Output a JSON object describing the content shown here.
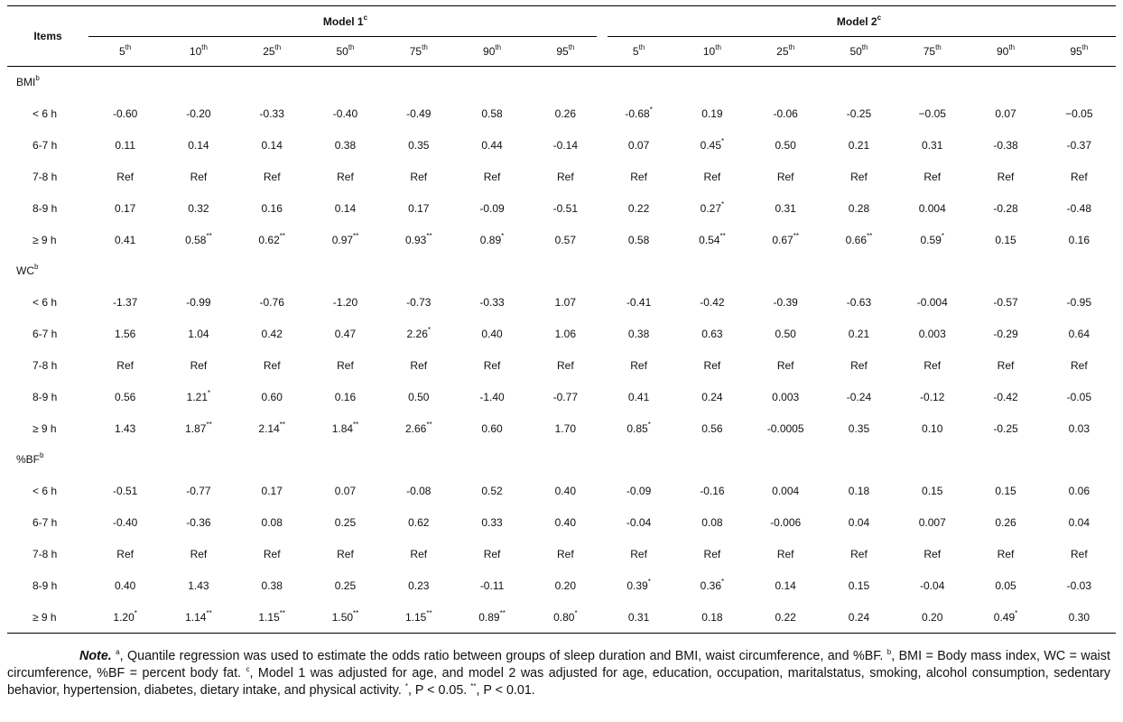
{
  "header": {
    "items": "Items",
    "model1": "Model 1",
    "model1_sup": "c",
    "model2": "Model 2",
    "model2_sup": "c",
    "percentiles": [
      {
        "num": "5",
        "sup": "th"
      },
      {
        "num": "10",
        "sup": "th"
      },
      {
        "num": "25",
        "sup": "th"
      },
      {
        "num": "50",
        "sup": "th"
      },
      {
        "num": "75",
        "sup": "th"
      },
      {
        "num": "90",
        "sup": "th"
      },
      {
        "num": "95",
        "sup": "th"
      }
    ]
  },
  "sections": [
    {
      "name": "BMI",
      "sup": "b",
      "rows": [
        {
          "label": "< 6 h",
          "values": [
            [
              "-0.60",
              ""
            ],
            [
              "-0.20",
              ""
            ],
            [
              "-0.33",
              ""
            ],
            [
              "-0.40",
              ""
            ],
            [
              "-0.49",
              ""
            ],
            [
              "0.58",
              ""
            ],
            [
              "0.26",
              ""
            ],
            [
              "-0.68",
              "*"
            ],
            [
              "0.19",
              ""
            ],
            [
              "-0.06",
              ""
            ],
            [
              "-0.25",
              ""
            ],
            [
              "−0.05",
              ""
            ],
            [
              "0.07",
              ""
            ],
            [
              "−0.05",
              ""
            ]
          ]
        },
        {
          "label": "6-7 h",
          "values": [
            [
              "0.11",
              ""
            ],
            [
              "0.14",
              ""
            ],
            [
              "0.14",
              ""
            ],
            [
              "0.38",
              ""
            ],
            [
              "0.35",
              ""
            ],
            [
              "0.44",
              ""
            ],
            [
              "-0.14",
              ""
            ],
            [
              "0.07",
              ""
            ],
            [
              "0.45",
              "*"
            ],
            [
              "0.50",
              ""
            ],
            [
              "0.21",
              ""
            ],
            [
              "0.31",
              ""
            ],
            [
              "-0.38",
              ""
            ],
            [
              "-0.37",
              ""
            ]
          ]
        },
        {
          "label": "7-8 h",
          "values": [
            [
              "Ref",
              ""
            ],
            [
              "Ref",
              ""
            ],
            [
              "Ref",
              ""
            ],
            [
              "Ref",
              ""
            ],
            [
              "Ref",
              ""
            ],
            [
              "Ref",
              ""
            ],
            [
              "Ref",
              ""
            ],
            [
              "Ref",
              ""
            ],
            [
              "Ref",
              ""
            ],
            [
              "Ref",
              ""
            ],
            [
              "Ref",
              ""
            ],
            [
              "Ref",
              ""
            ],
            [
              "Ref",
              ""
            ],
            [
              "Ref",
              ""
            ]
          ]
        },
        {
          "label": "8-9 h",
          "values": [
            [
              "0.17",
              ""
            ],
            [
              "0.32",
              ""
            ],
            [
              "0.16",
              ""
            ],
            [
              "0.14",
              ""
            ],
            [
              "0.17",
              ""
            ],
            [
              "-0.09",
              ""
            ],
            [
              "-0.51",
              ""
            ],
            [
              "0.22",
              ""
            ],
            [
              "0.27",
              "*"
            ],
            [
              "0.31",
              ""
            ],
            [
              "0.28",
              ""
            ],
            [
              "0.004",
              ""
            ],
            [
              "-0.28",
              ""
            ],
            [
              "-0.48",
              ""
            ]
          ]
        },
        {
          "label": "≥ 9 h",
          "values": [
            [
              "0.41",
              ""
            ],
            [
              "0.58",
              "**"
            ],
            [
              "0.62",
              "**"
            ],
            [
              "0.97",
              "**"
            ],
            [
              "0.93",
              "**"
            ],
            [
              "0.89",
              "*"
            ],
            [
              "0.57",
              ""
            ],
            [
              "0.58",
              ""
            ],
            [
              "0.54",
              "**"
            ],
            [
              "0.67",
              "**"
            ],
            [
              "0.66",
              "**"
            ],
            [
              "0.59",
              "*"
            ],
            [
              "0.15",
              ""
            ],
            [
              "0.16",
              ""
            ]
          ]
        }
      ]
    },
    {
      "name": "WC",
      "sup": "b",
      "rows": [
        {
          "label": "< 6 h",
          "values": [
            [
              "-1.37",
              ""
            ],
            [
              "-0.99",
              ""
            ],
            [
              "-0.76",
              ""
            ],
            [
              "-1.20",
              ""
            ],
            [
              "-0.73",
              ""
            ],
            [
              "-0.33",
              ""
            ],
            [
              "1.07",
              ""
            ],
            [
              "-0.41",
              ""
            ],
            [
              "-0.42",
              ""
            ],
            [
              "-0.39",
              ""
            ],
            [
              "-0.63",
              ""
            ],
            [
              "-0.004",
              ""
            ],
            [
              "-0.57",
              ""
            ],
            [
              "-0.95",
              ""
            ]
          ]
        },
        {
          "label": "6-7 h",
          "values": [
            [
              "1.56",
              ""
            ],
            [
              "1.04",
              ""
            ],
            [
              "0.42",
              ""
            ],
            [
              "0.47",
              ""
            ],
            [
              "2.26",
              "*"
            ],
            [
              "0.40",
              ""
            ],
            [
              "1.06",
              ""
            ],
            [
              "0.38",
              ""
            ],
            [
              "0.63",
              ""
            ],
            [
              "0.50",
              ""
            ],
            [
              "0.21",
              ""
            ],
            [
              "0.003",
              ""
            ],
            [
              "-0.29",
              ""
            ],
            [
              "0.64",
              ""
            ]
          ]
        },
        {
          "label": "7-8 h",
          "values": [
            [
              "Ref",
              ""
            ],
            [
              "Ref",
              ""
            ],
            [
              "Ref",
              ""
            ],
            [
              "Ref",
              ""
            ],
            [
              "Ref",
              ""
            ],
            [
              "Ref",
              ""
            ],
            [
              "Ref",
              ""
            ],
            [
              "Ref",
              ""
            ],
            [
              "Ref",
              ""
            ],
            [
              "Ref",
              ""
            ],
            [
              "Ref",
              ""
            ],
            [
              "Ref",
              ""
            ],
            [
              "Ref",
              ""
            ],
            [
              "Ref",
              ""
            ]
          ]
        },
        {
          "label": "8-9 h",
          "values": [
            [
              "0.56",
              ""
            ],
            [
              "1.21",
              "*"
            ],
            [
              "0.60",
              ""
            ],
            [
              "0.16",
              ""
            ],
            [
              "0.50",
              ""
            ],
            [
              "-1.40",
              ""
            ],
            [
              "-0.77",
              ""
            ],
            [
              "0.41",
              ""
            ],
            [
              "0.24",
              ""
            ],
            [
              "0.003",
              ""
            ],
            [
              "-0.24",
              ""
            ],
            [
              "-0.12",
              ""
            ],
            [
              "-0.42",
              ""
            ],
            [
              "-0.05",
              ""
            ]
          ]
        },
        {
          "label": "≥ 9 h",
          "values": [
            [
              "1.43",
              ""
            ],
            [
              "1.87",
              "**"
            ],
            [
              "2.14",
              "**"
            ],
            [
              "1.84",
              "**"
            ],
            [
              "2.66",
              "**"
            ],
            [
              "0.60",
              ""
            ],
            [
              "1.70",
              ""
            ],
            [
              "0.85",
              "*"
            ],
            [
              "0.56",
              ""
            ],
            [
              "-0.0005",
              ""
            ],
            [
              "0.35",
              ""
            ],
            [
              "0.10",
              ""
            ],
            [
              "-0.25",
              ""
            ],
            [
              "0.03",
              ""
            ]
          ]
        }
      ]
    },
    {
      "name": "%BF",
      "sup": "b",
      "rows": [
        {
          "label": "< 6 h",
          "values": [
            [
              "-0.51",
              ""
            ],
            [
              "-0.77",
              ""
            ],
            [
              "0.17",
              ""
            ],
            [
              "0.07",
              ""
            ],
            [
              "-0.08",
              ""
            ],
            [
              "0.52",
              ""
            ],
            [
              "0.40",
              ""
            ],
            [
              "-0.09",
              ""
            ],
            [
              "-0.16",
              ""
            ],
            [
              "0.004",
              ""
            ],
            [
              "0.18",
              ""
            ],
            [
              "0.15",
              ""
            ],
            [
              "0.15",
              ""
            ],
            [
              "0.06",
              ""
            ]
          ]
        },
        {
          "label": "6-7 h",
          "values": [
            [
              "-0.40",
              ""
            ],
            [
              "-0.36",
              ""
            ],
            [
              "0.08",
              ""
            ],
            [
              "0.25",
              ""
            ],
            [
              "0.62",
              ""
            ],
            [
              "0.33",
              ""
            ],
            [
              "0.40",
              ""
            ],
            [
              "-0.04",
              ""
            ],
            [
              "0.08",
              ""
            ],
            [
              "-0.006",
              ""
            ],
            [
              "0.04",
              ""
            ],
            [
              "0.007",
              ""
            ],
            [
              "0.26",
              ""
            ],
            [
              "0.04",
              ""
            ]
          ]
        },
        {
          "label": "7-8 h",
          "values": [
            [
              "Ref",
              ""
            ],
            [
              "Ref",
              ""
            ],
            [
              "Ref",
              ""
            ],
            [
              "Ref",
              ""
            ],
            [
              "Ref",
              ""
            ],
            [
              "Ref",
              ""
            ],
            [
              "Ref",
              ""
            ],
            [
              "Ref",
              ""
            ],
            [
              "Ref",
              ""
            ],
            [
              "Ref",
              ""
            ],
            [
              "Ref",
              ""
            ],
            [
              "Ref",
              ""
            ],
            [
              "Ref",
              ""
            ],
            [
              "Ref",
              ""
            ]
          ]
        },
        {
          "label": "8-9 h",
          "values": [
            [
              "0.40",
              ""
            ],
            [
              "1.43",
              ""
            ],
            [
              "0.38",
              ""
            ],
            [
              "0.25",
              ""
            ],
            [
              "0.23",
              ""
            ],
            [
              "-0.11",
              ""
            ],
            [
              "0.20",
              ""
            ],
            [
              "0.39",
              "*"
            ],
            [
              "0.36",
              "*"
            ],
            [
              "0.14",
              ""
            ],
            [
              "0.15",
              ""
            ],
            [
              "-0.04",
              ""
            ],
            [
              "0.05",
              ""
            ],
            [
              "-0.03",
              ""
            ]
          ]
        },
        {
          "label": "≥ 9 h",
          "values": [
            [
              "1.20",
              "*"
            ],
            [
              "1.14",
              "**"
            ],
            [
              "1.15",
              "**"
            ],
            [
              "1.50",
              "**"
            ],
            [
              "1.15",
              "**"
            ],
            [
              "0.89",
              "**"
            ],
            [
              "0.80",
              "*"
            ],
            [
              "0.31",
              ""
            ],
            [
              "0.18",
              ""
            ],
            [
              "0.22",
              ""
            ],
            [
              "0.24",
              ""
            ],
            [
              "0.20",
              ""
            ],
            [
              "0.49",
              "*"
            ],
            [
              "0.30",
              ""
            ]
          ]
        }
      ]
    }
  ],
  "note": {
    "lead": "Note.",
    "parts": [
      {
        "sup": "a",
        "text": ", Quantile regression was used to estimate the odds ratio between groups of sleep duration and BMI, waist circumference, and %BF. "
      },
      {
        "sup": "b",
        "text": ", BMI = Body mass index, WC = waist circumference, %BF = percent body fat. "
      },
      {
        "sup": "c",
        "text": ", Model 1 was adjusted for age, and model 2 was adjusted for age, education, occupation, maritalstatus, smoking, alcohol consumption, sedentary behavior, hypertension, diabetes, dietary intake, and physical activity. "
      },
      {
        "sup": "*",
        "text": ", P < 0.05. "
      },
      {
        "sup": "**",
        "text": ", P < 0.01."
      }
    ]
  }
}
